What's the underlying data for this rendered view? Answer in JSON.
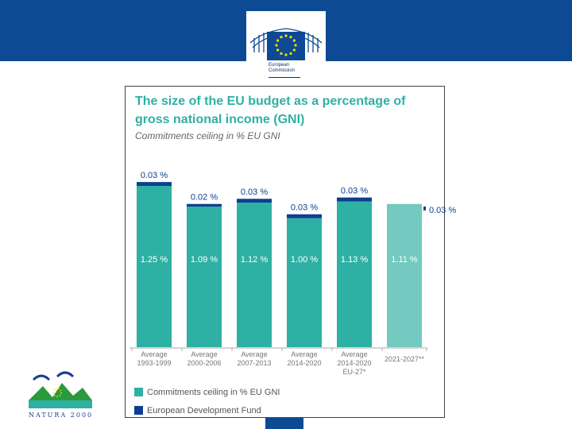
{
  "branding": {
    "ec_line1": "European",
    "ec_line2": "Commission",
    "natura_text": "NATURA 2000"
  },
  "colors": {
    "top_band": "#0e4a93",
    "teal": "#2fb0a4",
    "teal_light": "#74c9c0",
    "edf_blue": "#0e3f8f"
  },
  "chart_data": {
    "type": "bar",
    "title": "The size of the EU budget as a percentage of gross national income (GNI)",
    "subtitle": "Commitments ceiling in % EU GNI",
    "categories": [
      [
        "Average",
        "1993-1999"
      ],
      [
        "Average",
        "2000-2006"
      ],
      [
        "Average",
        "2007-2013"
      ],
      [
        "Average",
        "2014-2020"
      ],
      [
        "Average",
        "2014-2020",
        "EU-27*"
      ],
      [
        "2021-2027**"
      ]
    ],
    "series": [
      {
        "name": "Commitments ceiling in % EU GNI",
        "values": [
          1.25,
          1.09,
          1.12,
          1.0,
          1.13,
          1.11
        ],
        "labels": [
          "1.25 %",
          "1.09 %",
          "1.12 %",
          "1.00 %",
          "1.13 %",
          "1.11 %"
        ]
      },
      {
        "name": "European Development Fund",
        "values": [
          0.03,
          0.02,
          0.03,
          0.03,
          0.03,
          0.03
        ],
        "labels": [
          "0.03 %",
          "0.02 %",
          "0.03 %",
          "0.03 %",
          "0.03 %",
          "0.03 %"
        ]
      }
    ],
    "ylim": [
      0,
      1.3
    ],
    "legend": [
      "Commitments ceiling in % EU GNI",
      "European Development Fund"
    ],
    "legend_position": "bottom-left"
  }
}
